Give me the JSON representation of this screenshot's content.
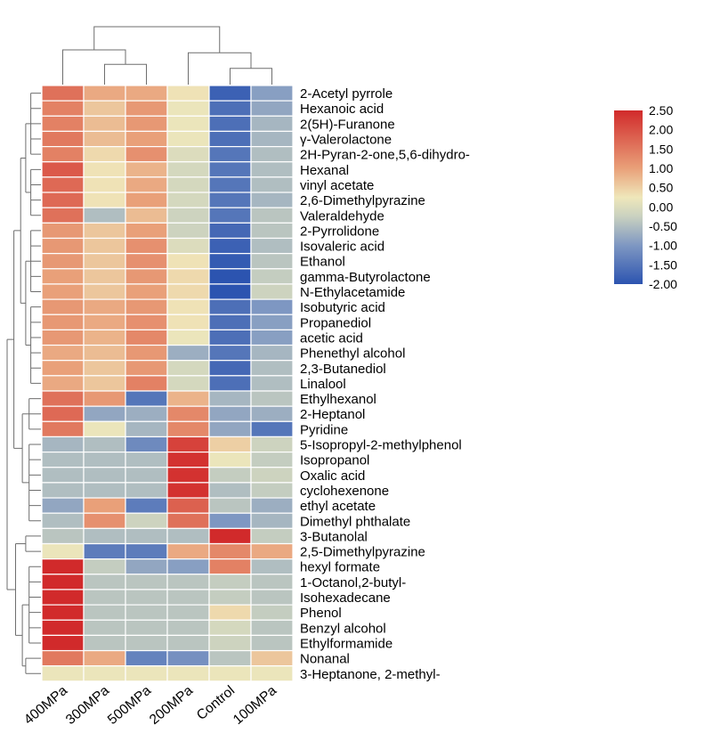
{
  "chart_data": {
    "type": "heatmap",
    "title": "",
    "columns": [
      "400MPa",
      "300MPa",
      "500MPa",
      "200MPa",
      "Control",
      "100MPa"
    ],
    "rows": [
      "2-Acetyl pyrrole",
      "Hexanoic acid",
      "2(5H)-Furanone",
      "γ-Valerolactone",
      "2H-Pyran-2-one,5,6-dihydro-",
      "Hexanal",
      "vinyl acetate",
      "2,6-Dimethylpyrazine",
      "Valeraldehyde",
      "2-Pyrrolidone",
      "Isovaleric acid",
      "Ethanol",
      "gamma-Butyrolactone",
      "N-Ethylacetamide",
      "Isobutyric acid",
      "Propanediol",
      "acetic acid",
      "Phenethyl alcohol",
      "2,3-Butanediol",
      "Linalool",
      "Ethylhexanol",
      "2-Heptanol",
      "Pyridine",
      "5-Isopropyl-2-methylphenol",
      "Isopropanol",
      "Oxalic acid",
      "cyclohexenone",
      "ethyl acetate",
      "Dimethyl phthalate",
      "3-Butanolal",
      "2,5-Dimethylpyrazine",
      "hexyl formate",
      "1-Octanol,2-butyl-",
      "Isohexadecane",
      "Phenol",
      "Benzyl alcohol",
      "Ethylformamide",
      "Nonanal",
      "3-Heptanone, 2-methyl-"
    ],
    "values": [
      [
        1.6,
        0.9,
        0.9,
        0.3,
        -1.8,
        -0.9
      ],
      [
        1.4,
        0.6,
        1.1,
        0.2,
        -1.6,
        -0.8
      ],
      [
        1.4,
        0.7,
        1.1,
        0.2,
        -1.6,
        -0.6
      ],
      [
        1.5,
        0.7,
        1.0,
        0.2,
        -1.6,
        -0.6
      ],
      [
        1.4,
        0.4,
        1.2,
        0.0,
        -1.5,
        -0.5
      ],
      [
        1.9,
        0.3,
        0.8,
        -0.1,
        -1.5,
        -0.5
      ],
      [
        1.7,
        0.3,
        0.9,
        -0.1,
        -1.5,
        -0.5
      ],
      [
        1.7,
        0.3,
        1.0,
        -0.1,
        -1.5,
        -0.6
      ],
      [
        1.6,
        -0.5,
        0.7,
        -0.2,
        -1.5,
        -0.4
      ],
      [
        1.1,
        0.6,
        1.0,
        -0.2,
        -1.7,
        -0.4
      ],
      [
        1.1,
        0.6,
        1.2,
        0.0,
        -1.8,
        -0.5
      ],
      [
        1.1,
        0.6,
        1.2,
        0.3,
        -1.9,
        -0.4
      ],
      [
        1.0,
        0.6,
        1.1,
        0.4,
        -2.0,
        -0.3
      ],
      [
        1.0,
        0.6,
        1.0,
        0.4,
        -2.0,
        -0.2
      ],
      [
        1.1,
        0.9,
        1.1,
        0.3,
        -1.6,
        -1.0
      ],
      [
        1.1,
        0.9,
        1.2,
        0.3,
        -1.6,
        -0.9
      ],
      [
        1.1,
        0.8,
        1.3,
        0.2,
        -1.6,
        -0.9
      ],
      [
        0.9,
        0.7,
        1.1,
        -0.7,
        -1.5,
        -0.6
      ],
      [
        1.0,
        0.6,
        1.1,
        -0.1,
        -1.7,
        -0.5
      ],
      [
        0.9,
        0.6,
        1.4,
        -0.1,
        -1.6,
        -0.5
      ],
      [
        1.6,
        1.1,
        -1.5,
        0.8,
        -0.6,
        -0.4
      ],
      [
        1.7,
        -0.8,
        -0.7,
        1.3,
        -0.8,
        -0.7
      ],
      [
        1.5,
        0.2,
        -0.6,
        1.3,
        -0.8,
        -1.5
      ],
      [
        -0.6,
        -0.5,
        -1.2,
        2.2,
        0.5,
        -0.2
      ],
      [
        -0.5,
        -0.5,
        -0.5,
        2.4,
        0.2,
        -0.3
      ],
      [
        -0.5,
        -0.5,
        -0.5,
        2.4,
        -0.3,
        -0.2
      ],
      [
        -0.5,
        -0.5,
        -0.5,
        2.4,
        -0.5,
        -0.3
      ],
      [
        -0.8,
        1.0,
        -1.4,
        1.8,
        -0.4,
        -0.7
      ],
      [
        -0.5,
        1.2,
        -0.2,
        1.6,
        -1.0,
        -0.6
      ],
      [
        -0.4,
        -0.5,
        -0.5,
        -0.5,
        2.5,
        -0.3
      ],
      [
        0.2,
        -1.4,
        -1.4,
        0.9,
        1.3,
        0.9
      ],
      [
        2.5,
        -0.3,
        -0.8,
        -0.9,
        1.4,
        -0.5
      ],
      [
        2.5,
        -0.4,
        -0.4,
        -0.4,
        -0.3,
        -0.4
      ],
      [
        2.5,
        -0.4,
        -0.4,
        -0.4,
        -0.3,
        -0.4
      ],
      [
        2.5,
        -0.4,
        -0.4,
        -0.4,
        0.4,
        -0.3
      ],
      [
        2.5,
        -0.4,
        -0.4,
        -0.4,
        -0.1,
        -0.4
      ],
      [
        2.5,
        -0.4,
        -0.4,
        -0.4,
        -0.2,
        -0.4
      ],
      [
        1.5,
        0.9,
        -1.3,
        -1.1,
        -0.4,
        0.6
      ],
      [
        0.2,
        0.2,
        0.2,
        0.2,
        0.2,
        0.2
      ]
    ],
    "color_scale": {
      "min": -2.0,
      "max": 2.5,
      "stops": [
        {
          "value": -2.0,
          "color": "#2c54b0"
        },
        {
          "value": -1.0,
          "color": "#7e97c2"
        },
        {
          "value": -0.25,
          "color": "#c9d1c0"
        },
        {
          "value": 0.25,
          "color": "#efe7ba"
        },
        {
          "value": 1.0,
          "color": "#e9a079"
        },
        {
          "value": 2.5,
          "color": "#d12a2b"
        }
      ]
    },
    "colorbar_ticks": [
      "2.50",
      "2.00",
      "1.50",
      "1.00",
      "0.50",
      "0.00",
      "-0.50",
      "-1.00",
      "-1.50",
      "-2.00"
    ],
    "colorbar_tick_values": [
      2.5,
      2.0,
      1.5,
      1.0,
      0.5,
      0.0,
      -0.5,
      -1.0,
      -1.5,
      -2.0
    ],
    "legend_position": "top-right",
    "column_dendrogram": {
      "labels": [
        "400MPa",
        "300MPa",
        "500MPa",
        "200MPa",
        "Control",
        "100MPa"
      ],
      "merges": [
        [
          1,
          2,
          0.35
        ],
        [
          4,
          5,
          0.28
        ],
        [
          3,
          7,
          0.55
        ],
        [
          0,
          6,
          0.6
        ],
        [
          8,
          9,
          1.0
        ]
      ]
    },
    "row_dendrogram": {
      "groups": [
        {
          "members": [
            0,
            1,
            2,
            3,
            4
          ],
          "height": 0.3
        },
        {
          "members": [
            5,
            6,
            7,
            8
          ],
          "height": 0.3
        },
        {
          "members": [
            0,
            1,
            2,
            3,
            4,
            5,
            6,
            7,
            8
          ],
          "height": 0.45
        },
        {
          "members": [
            9,
            10,
            11,
            12,
            13
          ],
          "height": 0.3
        },
        {
          "members": [
            14,
            15,
            16,
            17,
            18,
            19
          ],
          "height": 0.3
        },
        {
          "members": [
            9,
            10,
            11,
            12,
            13,
            14,
            15,
            16,
            17,
            18,
            19
          ],
          "height": 0.45
        },
        {
          "members": [
            0,
            1,
            2,
            3,
            4,
            5,
            6,
            7,
            8,
            9,
            10,
            11,
            12,
            13,
            14,
            15,
            16,
            17,
            18,
            19
          ],
          "height": 0.6
        },
        {
          "members": [
            20,
            21,
            22
          ],
          "height": 0.35
        },
        {
          "members": [
            23,
            24,
            25,
            26,
            27,
            28
          ],
          "height": 0.35
        },
        {
          "members": [
            20,
            21,
            22,
            23,
            24,
            25,
            26,
            27,
            28
          ],
          "height": 0.55
        },
        {
          "members": [
            0,
            1,
            2,
            3,
            4,
            5,
            6,
            7,
            8,
            9,
            10,
            11,
            12,
            13,
            14,
            15,
            16,
            17,
            18,
            19,
            20,
            21,
            22,
            23,
            24,
            25,
            26,
            27,
            28
          ],
          "height": 0.8
        },
        {
          "members": [
            29,
            30
          ],
          "height": 0.45
        },
        {
          "members": [
            31,
            32,
            33,
            34,
            35,
            36
          ],
          "height": 0.35
        },
        {
          "members": [
            37,
            38
          ],
          "height": 0.45
        },
        {
          "members": [
            31,
            32,
            33,
            34,
            35,
            36,
            37,
            38
          ],
          "height": 0.55
        },
        {
          "members": [
            29,
            30,
            31,
            32,
            33,
            34,
            35,
            36,
            37,
            38
          ],
          "height": 0.75
        },
        {
          "members": [
            0,
            1,
            2,
            3,
            4,
            5,
            6,
            7,
            8,
            9,
            10,
            11,
            12,
            13,
            14,
            15,
            16,
            17,
            18,
            19,
            20,
            21,
            22,
            23,
            24,
            25,
            26,
            27,
            28,
            29,
            30,
            31,
            32,
            33,
            34,
            35,
            36,
            37,
            38
          ],
          "height": 1.0
        }
      ]
    }
  }
}
